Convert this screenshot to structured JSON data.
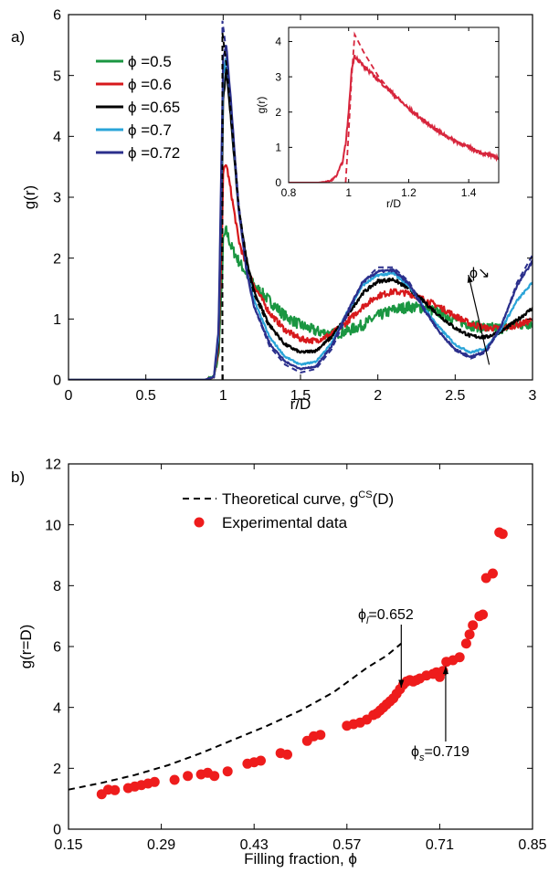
{
  "colors": {
    "phi_05": "#1a9641",
    "phi_06": "#d7191c",
    "phi_065": "#000000",
    "phi_07": "#2aa4d8",
    "phi_072": "#2b2f8c",
    "inset": "#d7263d",
    "exp_points": "#ee1c1c",
    "theory": "#000000"
  },
  "chart_data": [
    {
      "panel_label": "a)",
      "type": "line",
      "xlabel": "r/D",
      "ylabel": "g(r)",
      "xlim": [
        0,
        3
      ],
      "ylim": [
        0,
        6
      ],
      "xticks": [
        "0",
        "0.5",
        "1",
        "1.5",
        "2",
        "2.5",
        "3"
      ],
      "yticks": [
        "0",
        "1",
        "2",
        "3",
        "4",
        "5",
        "6"
      ],
      "legend_position": "top-left",
      "series": [
        {
          "name": "ϕ =0.5",
          "color_key": "phi_05",
          "noise": 0.09,
          "x": [
            0,
            0.88,
            0.94,
            0.97,
            0.99,
            1.0,
            1.02,
            1.05,
            1.1,
            1.15,
            1.2,
            1.3,
            1.4,
            1.5,
            1.6,
            1.7,
            1.8,
            1.9,
            2.0,
            2.1,
            2.2,
            2.3,
            2.4,
            2.5,
            2.6,
            2.7,
            2.8,
            2.9,
            3.0
          ],
          "y": [
            0,
            0,
            0.05,
            0.4,
            1.5,
            2.3,
            2.45,
            2.2,
            1.95,
            1.75,
            1.55,
            1.3,
            1.05,
            0.9,
            0.8,
            0.75,
            0.8,
            0.9,
            1.05,
            1.15,
            1.2,
            1.18,
            1.1,
            1.0,
            0.9,
            0.85,
            0.85,
            0.9,
            0.93
          ]
        },
        {
          "name": "ϕ =0.6",
          "color_key": "phi_06",
          "noise": 0.05,
          "x": [
            0,
            0.88,
            0.94,
            0.97,
            0.99,
            1.0,
            1.02,
            1.05,
            1.1,
            1.15,
            1.2,
            1.3,
            1.4,
            1.5,
            1.6,
            1.7,
            1.8,
            1.9,
            2.0,
            2.1,
            2.2,
            2.3,
            2.4,
            2.5,
            2.6,
            2.7,
            2.8,
            2.9,
            3.0
          ],
          "y": [
            0,
            0,
            0.05,
            0.5,
            2.2,
            3.4,
            3.55,
            3.1,
            2.3,
            1.85,
            1.55,
            1.1,
            0.82,
            0.67,
            0.64,
            0.75,
            0.95,
            1.2,
            1.38,
            1.45,
            1.42,
            1.32,
            1.2,
            1.05,
            0.92,
            0.85,
            0.85,
            0.9,
            0.98
          ]
        },
        {
          "name": "ϕ =0.65",
          "color_key": "phi_065",
          "noise": 0.03,
          "x": [
            0,
            0.88,
            0.94,
            0.97,
            0.99,
            1.0,
            1.02,
            1.05,
            1.1,
            1.15,
            1.2,
            1.3,
            1.4,
            1.5,
            1.6,
            1.7,
            1.8,
            1.9,
            2.0,
            2.1,
            2.2,
            2.3,
            2.4,
            2.5,
            2.6,
            2.7,
            2.8,
            2.9,
            3.0
          ],
          "y": [
            0,
            0,
            0.05,
            0.6,
            3.0,
            4.6,
            5.1,
            4.3,
            2.8,
            2.0,
            1.45,
            0.9,
            0.58,
            0.45,
            0.48,
            0.7,
            1.05,
            1.42,
            1.62,
            1.65,
            1.5,
            1.28,
            1.05,
            0.85,
            0.72,
            0.7,
            0.8,
            0.98,
            1.18
          ]
        },
        {
          "name": "ϕ =0.7",
          "color_key": "phi_07",
          "noise": 0.02,
          "x": [
            0,
            0.88,
            0.94,
            0.97,
            0.99,
            1.0,
            1.02,
            1.05,
            1.1,
            1.15,
            1.2,
            1.3,
            1.4,
            1.5,
            1.6,
            1.7,
            1.8,
            1.9,
            2.0,
            2.1,
            2.2,
            2.3,
            2.4,
            2.5,
            2.6,
            2.7,
            2.8,
            2.9,
            3.0
          ],
          "y": [
            0,
            0,
            0.05,
            0.7,
            3.5,
            5.0,
            5.3,
            4.5,
            2.8,
            1.85,
            1.3,
            0.7,
            0.38,
            0.25,
            0.3,
            0.6,
            1.1,
            1.55,
            1.72,
            1.75,
            1.55,
            1.18,
            0.85,
            0.58,
            0.45,
            0.52,
            0.85,
            1.3,
            1.6
          ]
        },
        {
          "name": "ϕ =0.72",
          "color_key": "phi_072",
          "noise": 0.02,
          "x": [
            0,
            0.88,
            0.94,
            0.97,
            0.99,
            1.0,
            1.02,
            1.05,
            1.1,
            1.15,
            1.2,
            1.3,
            1.4,
            1.5,
            1.6,
            1.7,
            1.8,
            1.9,
            2.0,
            2.1,
            2.2,
            2.3,
            2.4,
            2.5,
            2.6,
            2.7,
            2.8,
            2.9,
            3.0
          ],
          "y": [
            0,
            0,
            0.05,
            0.8,
            3.8,
            5.3,
            5.5,
            4.6,
            2.8,
            1.8,
            1.2,
            0.6,
            0.3,
            0.18,
            0.22,
            0.55,
            1.1,
            1.6,
            1.78,
            1.8,
            1.58,
            1.15,
            0.78,
            0.5,
            0.38,
            0.48,
            0.9,
            1.55,
            1.95
          ]
        }
      ],
      "theory_curves": [
        {
          "x": [
            0.995,
            0.995,
            1.02,
            1.05,
            1.1,
            1.15,
            1.2,
            1.3,
            1.4,
            1.5,
            1.6,
            1.7,
            1.8,
            1.9,
            2.0,
            2.1,
            2.2,
            2.3,
            2.4,
            2.5,
            2.6,
            2.7,
            2.8,
            2.9,
            3.0
          ],
          "y": [
            0,
            5.9,
            5.4,
            4.5,
            2.9,
            1.85,
            1.2,
            0.55,
            0.25,
            0.12,
            0.18,
            0.5,
            1.05,
            1.6,
            1.85,
            1.85,
            1.62,
            1.18,
            0.78,
            0.48,
            0.35,
            0.45,
            0.88,
            1.6,
            2.05
          ],
          "color_key": "phi_072"
        },
        {
          "x": [
            0.995,
            0.995,
            1.02,
            1.05,
            1.1,
            1.15,
            1.2,
            1.3
          ],
          "y": [
            0,
            5.7,
            5.2,
            4.4,
            2.85,
            1.95,
            1.4,
            0.85
          ],
          "color_key": "phi_065"
        }
      ],
      "annotation": {
        "text": "ϕ↘",
        "arrow_from": [
          2.72,
          0.25
        ],
        "arrow_to": [
          2.94,
          1.95
        ]
      },
      "inset": {
        "type": "line",
        "xlabel": "r/D",
        "ylabel": "g(r)",
        "xlim": [
          0.8,
          1.5
        ],
        "ylim": [
          0,
          4.4
        ],
        "xticks": [
          "0.8",
          "1",
          "1.2",
          "1.4"
        ],
        "yticks": [
          "0",
          "1",
          "2",
          "3",
          "4"
        ],
        "series": [
          {
            "color_key": "inset",
            "noise": 0.05,
            "x": [
              0.8,
              0.9,
              0.94,
              0.96,
              0.98,
              0.99,
              1.0,
              1.01,
              1.02,
              1.05,
              1.1,
              1.15,
              1.2,
              1.25,
              1.3,
              1.35,
              1.4,
              1.45,
              1.5
            ],
            "y": [
              0,
              0,
              0.05,
              0.2,
              0.6,
              1.1,
              2.0,
              3.2,
              3.6,
              3.3,
              2.9,
              2.5,
              2.1,
              1.75,
              1.45,
              1.2,
              1.0,
              0.82,
              0.7
            ]
          }
        ],
        "theory": {
          "x": [
            0.99,
            1.0,
            1.01,
            1.02,
            1.05,
            1.1,
            1.15,
            1.2,
            1.3,
            1.4,
            1.5
          ],
          "y": [
            0,
            1.4,
            3.0,
            4.2,
            3.7,
            3.0,
            2.5,
            2.1,
            1.45,
            1.0,
            0.68
          ]
        }
      }
    },
    {
      "panel_label": "b)",
      "type": "scatter",
      "xlabel": "Filling fraction, ϕ",
      "ylabel": "g(r=D)",
      "xlim": [
        0.15,
        0.85
      ],
      "ylim": [
        0,
        12
      ],
      "xticks": [
        "0.15",
        "0.29",
        "0.43",
        "0.57",
        "0.71",
        "0.85"
      ],
      "yticks": [
        "0",
        "2",
        "4",
        "6",
        "8",
        "10",
        "12"
      ],
      "legend_position": "top-center",
      "legend": {
        "theory": "Theoretical curve, g",
        "theory_sup": "CS",
        "theory_tail": "(D)",
        "experiment": "Experimental data"
      },
      "theory_curve": {
        "x": [
          0.15,
          0.2,
          0.25,
          0.3,
          0.35,
          0.4,
          0.45,
          0.5,
          0.55,
          0.6,
          0.63,
          0.652
        ],
        "y": [
          1.3,
          1.52,
          1.78,
          2.1,
          2.5,
          2.95,
          3.4,
          3.9,
          4.5,
          5.3,
          5.7,
          6.1
        ]
      },
      "points": {
        "x": [
          0.2,
          0.21,
          0.22,
          0.24,
          0.25,
          0.26,
          0.27,
          0.28,
          0.31,
          0.33,
          0.35,
          0.36,
          0.37,
          0.39,
          0.42,
          0.43,
          0.44,
          0.47,
          0.48,
          0.51,
          0.52,
          0.53,
          0.57,
          0.58,
          0.59,
          0.6,
          0.61,
          0.615,
          0.62,
          0.625,
          0.63,
          0.635,
          0.64,
          0.645,
          0.65,
          0.655,
          0.66,
          0.665,
          0.67,
          0.675,
          0.68,
          0.69,
          0.7,
          0.705,
          0.71,
          0.715,
          0.72,
          0.73,
          0.74,
          0.75,
          0.755,
          0.76,
          0.77,
          0.775,
          0.78,
          0.79,
          0.8,
          0.805
        ],
        "y": [
          1.15,
          1.3,
          1.28,
          1.35,
          1.4,
          1.45,
          1.5,
          1.55,
          1.62,
          1.75,
          1.8,
          1.85,
          1.75,
          1.9,
          2.15,
          2.2,
          2.25,
          2.5,
          2.45,
          2.9,
          3.05,
          3.1,
          3.4,
          3.45,
          3.5,
          3.6,
          3.75,
          3.8,
          3.9,
          4.0,
          4.1,
          4.2,
          4.3,
          4.45,
          4.6,
          4.75,
          4.85,
          4.9,
          4.85,
          4.9,
          4.95,
          5.05,
          5.1,
          5.15,
          5.0,
          5.2,
          5.5,
          5.55,
          5.65,
          6.1,
          6.4,
          6.7,
          7.0,
          7.05,
          8.25,
          8.4,
          9.75,
          9.7
        ]
      },
      "annotations": [
        {
          "base": "ϕ",
          "sub": "l",
          "tail": "=0.652",
          "phi": 0.652
        },
        {
          "base": "ϕ",
          "sub": "s",
          "tail": "=0.719",
          "phi": 0.719
        }
      ]
    }
  ]
}
